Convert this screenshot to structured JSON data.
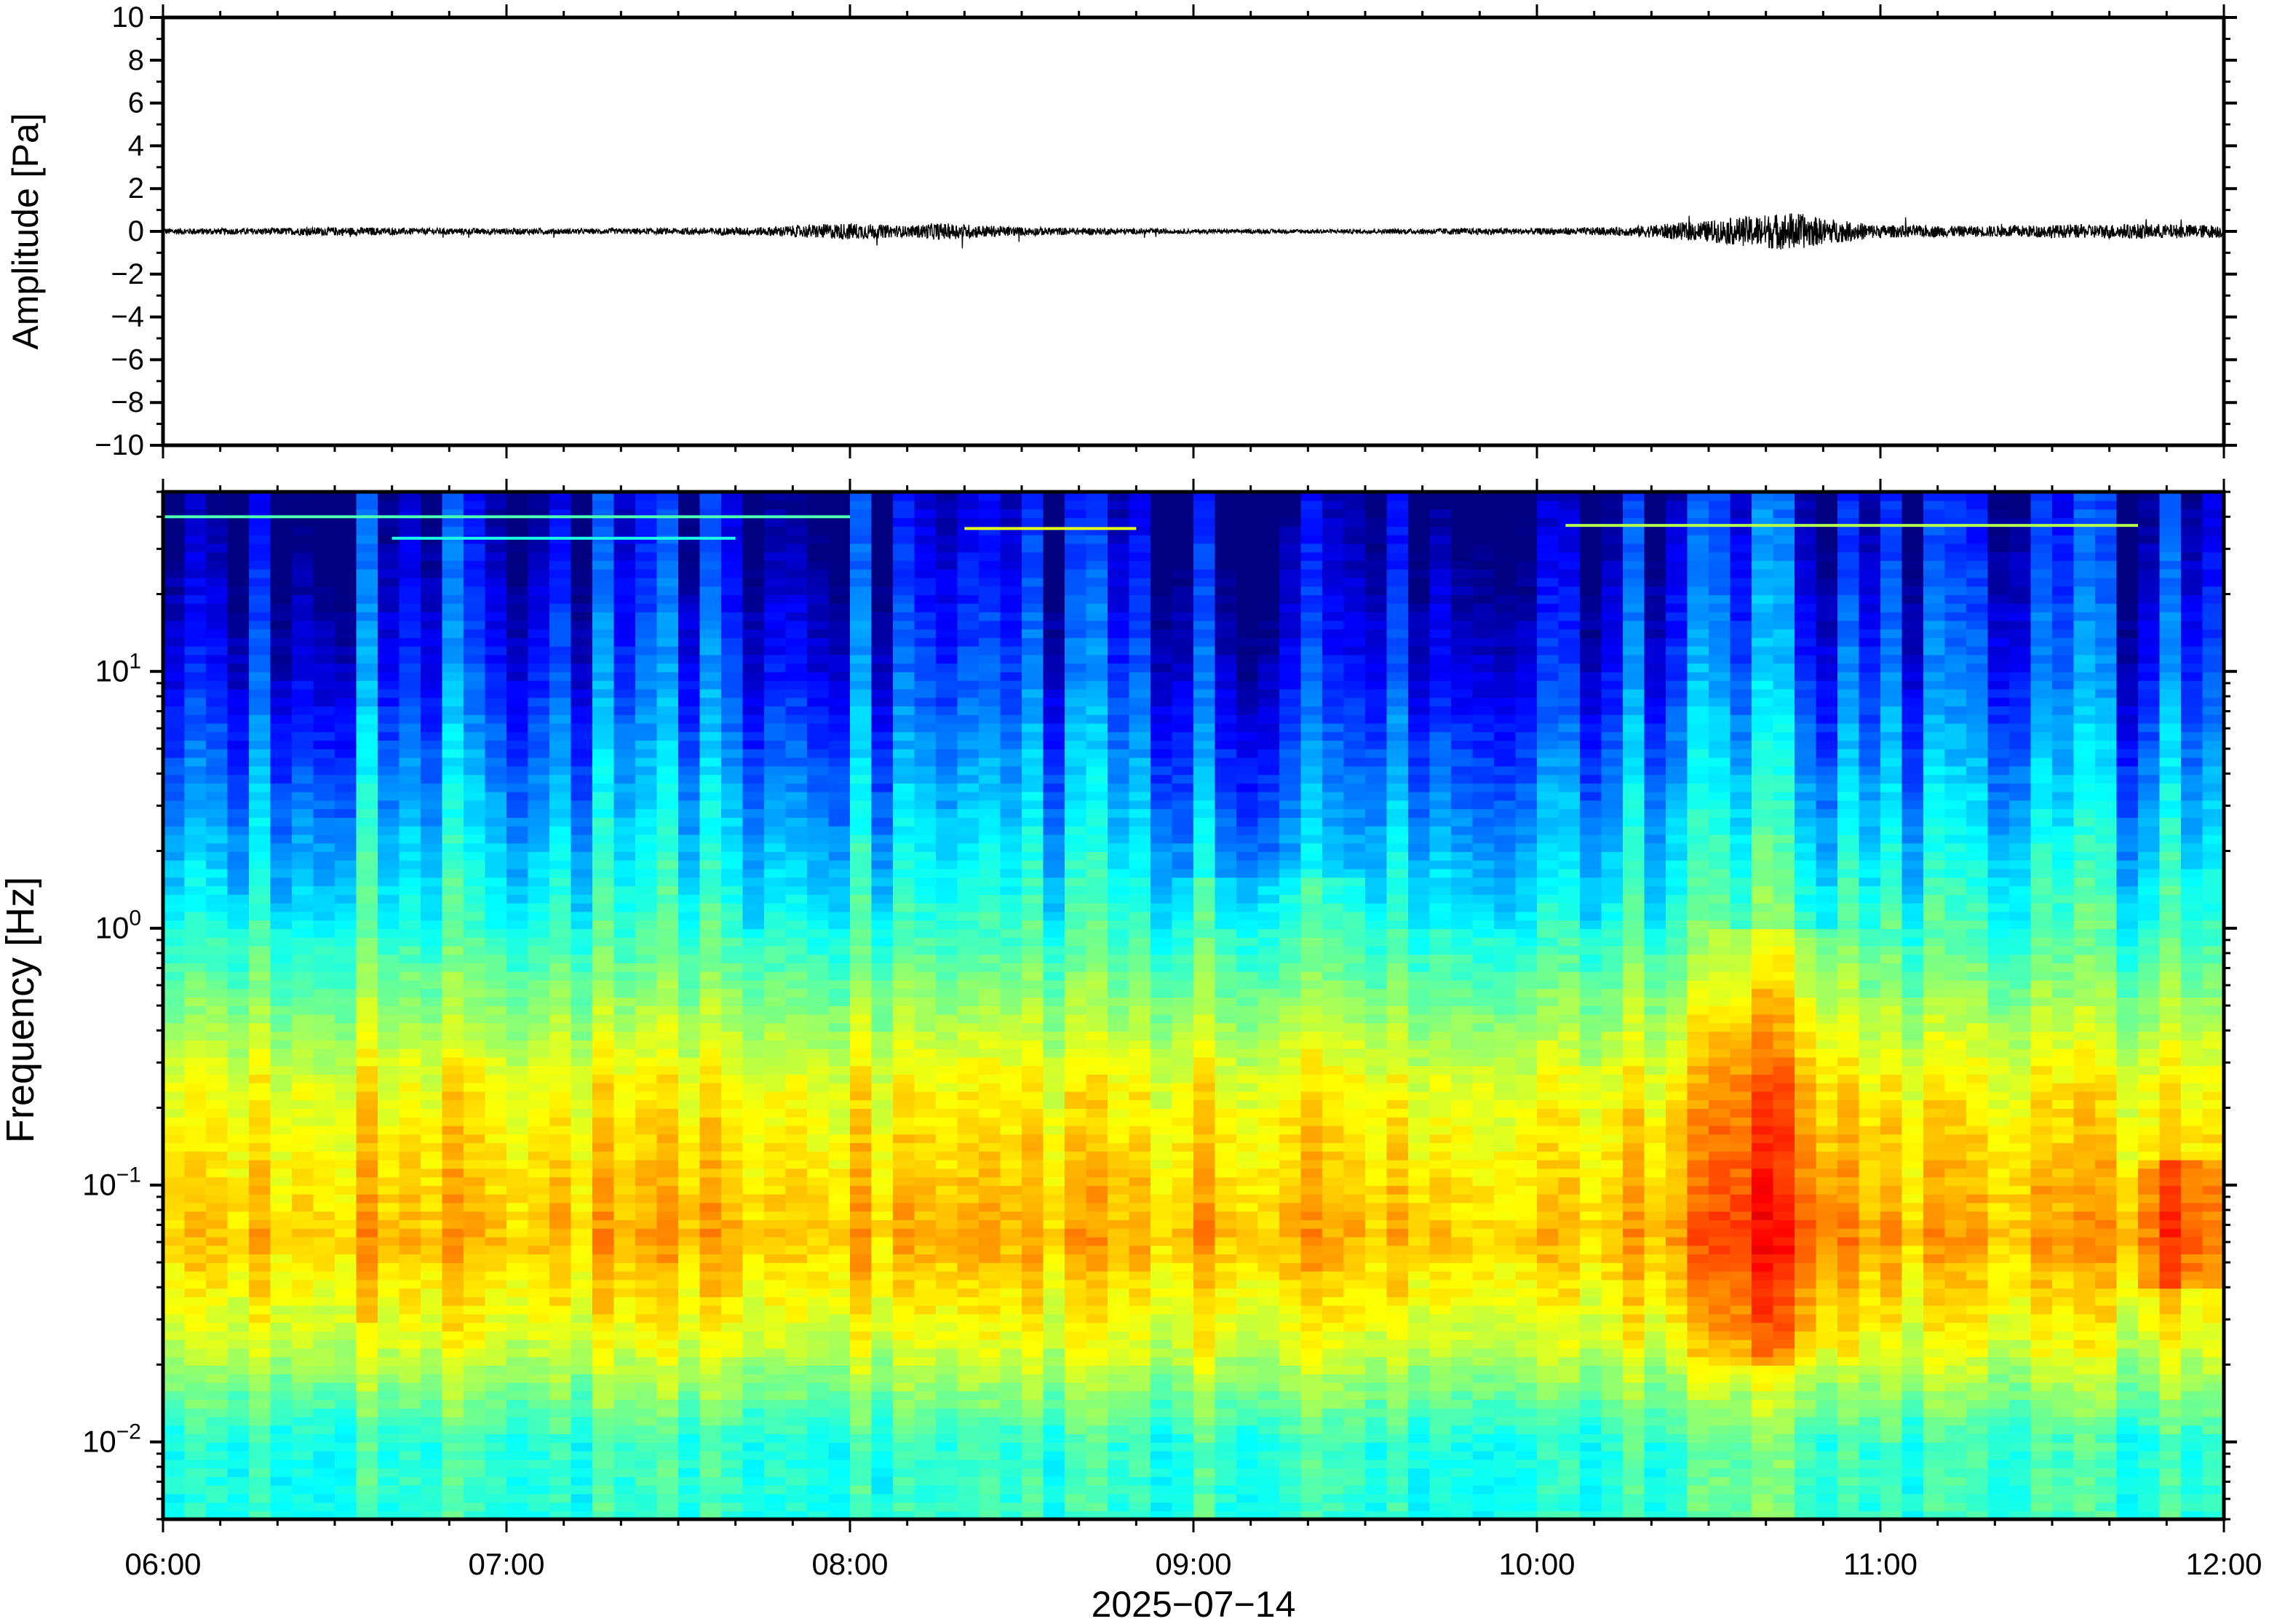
{
  "chart_data": [
    {
      "type": "line",
      "panel": "waveform",
      "ylabel": "Amplitude [Pa]",
      "ylim": [
        -10,
        10
      ],
      "yticks": [
        10,
        8,
        6,
        4,
        2,
        0,
        -2,
        -4,
        -6,
        -8,
        -10
      ],
      "ytick_labels": [
        "10",
        "8",
        "6",
        "4",
        "2",
        "0",
        "−2",
        "−4",
        "−6",
        "−8",
        "−10"
      ],
      "xlim": [
        "06:00",
        "12:00"
      ],
      "series": [
        {
          "x": [
            "06:00",
            "06:15",
            "06:30",
            "06:45",
            "07:00",
            "07:15",
            "07:30",
            "07:45",
            "08:00",
            "08:10",
            "08:15",
            "08:30",
            "08:45",
            "09:00",
            "09:15",
            "09:30",
            "09:45",
            "10:00",
            "10:15",
            "10:30",
            "10:40",
            "10:45",
            "10:50",
            "11:00",
            "11:15",
            "11:30",
            "11:45",
            "12:00"
          ],
          "values": [
            0.15,
            0.15,
            0.2,
            0.15,
            0.15,
            0.12,
            0.15,
            0.2,
            0.4,
            0.25,
            0.4,
            0.2,
            0.15,
            0.1,
            0.1,
            0.1,
            0.15,
            0.15,
            0.2,
            0.5,
            0.8,
            0.9,
            0.6,
            0.3,
            0.25,
            0.3,
            0.35,
            0.3
          ]
        }
      ]
    },
    {
      "type": "heatmap",
      "panel": "spectrogram",
      "ylabel": "Frequency [Hz]",
      "xlabel": "2025−07−14",
      "yscale": "log",
      "ylim": [
        0.005,
        50
      ],
      "yticks": [
        0.01,
        0.1,
        1,
        10
      ],
      "ytick_labels": [
        {
          "base": "10",
          "exp": "−2"
        },
        {
          "base": "10",
          "exp": "−1"
        },
        {
          "base": "10",
          "exp": "0"
        },
        {
          "base": "10",
          "exp": "1"
        }
      ],
      "xticks": [
        "06:00",
        "07:00",
        "08:00",
        "09:00",
        "10:00",
        "11:00",
        "12:00"
      ],
      "colormap": "jet",
      "colorbar": false,
      "description_levels": {
        "low_freq_band_0.005_0.02Hz": "low-medium",
        "band_0.03_0.3Hz": "high",
        "band_1_10Hz": "medium-low",
        "band_10_50Hz": "low"
      },
      "events": [
        {
          "time": "10:40",
          "note": "broadband energy increase 0.03–0.3 Hz"
        },
        {
          "time": "11:50",
          "note": "energy increase near 0.06 Hz"
        }
      ]
    }
  ]
}
